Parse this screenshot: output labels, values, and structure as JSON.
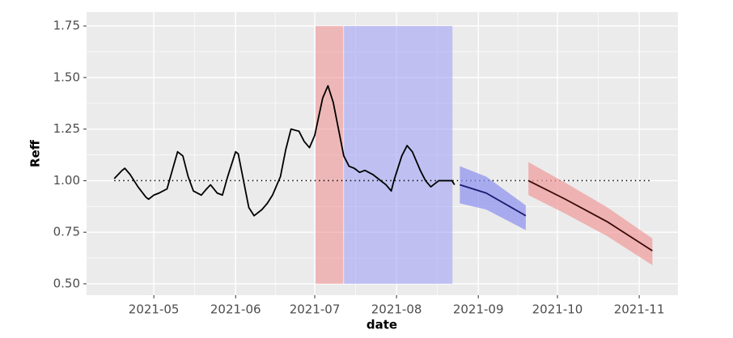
{
  "chart_data": {
    "type": "line",
    "x_label": "date",
    "y_label": "Reff",
    "xlim": [
      -25.5,
      198.7
    ],
    "ylim": [
      0.445,
      1.817
    ],
    "xticks": [
      {
        "value": 0,
        "label": "2021-05"
      },
      {
        "value": 31,
        "label": "2021-06"
      },
      {
        "value": 61,
        "label": "2021-07"
      },
      {
        "value": 92,
        "label": "2021-08"
      },
      {
        "value": 123,
        "label": "2021-09"
      },
      {
        "value": 153,
        "label": "2021-10"
      },
      {
        "value": 184,
        "label": "2021-11"
      }
    ],
    "yticks": [
      {
        "value": 0.5,
        "label": "0.50"
      },
      {
        "value": 0.75,
        "label": "0.75"
      },
      {
        "value": 1,
        "label": "1.00"
      },
      {
        "value": 1.25,
        "label": "1.25"
      },
      {
        "value": 1.5,
        "label": "1.50"
      },
      {
        "value": 1.75,
        "label": "1.75"
      }
    ],
    "grid": true,
    "reference_line": {
      "y": 1,
      "x": [
        -15,
        189
      ],
      "color": "#000000",
      "style": "dotted"
    },
    "shaded_regions": [
      {
        "x": [
          61.3,
          71.8
        ],
        "y": [
          0.5,
          1.75
        ],
        "color": "#f08c8c"
      },
      {
        "x": [
          72.1,
          113.2
        ],
        "y": [
          0.5,
          1.75
        ],
        "color": "#9a9cf5"
      }
    ],
    "series": [
      {
        "color": "#000000",
        "x": [
          -15,
          -12,
          -11,
          -9,
          -6,
          -3,
          -2,
          0,
          2,
          5,
          7,
          9,
          11,
          13,
          15,
          18,
          20,
          21.5,
          24,
          26,
          28,
          31,
          32,
          34,
          36,
          38,
          41,
          43,
          45,
          48,
          50,
          52,
          55,
          57,
          59,
          61,
          64,
          66,
          68,
          70,
          72,
          74,
          76,
          78,
          80,
          83,
          85,
          88,
          90,
          91,
          94,
          96,
          98,
          101,
          103,
          105,
          108,
          110,
          113,
          114
        ],
        "values": [
          1.01,
          1.05,
          1.06,
          1.03,
          0.97,
          0.92,
          0.91,
          0.93,
          0.94,
          0.96,
          1.05,
          1.14,
          1.12,
          1.02,
          0.95,
          0.93,
          0.96,
          0.98,
          0.94,
          0.93,
          1.02,
          1.14,
          1.13,
          1.0,
          0.87,
          0.83,
          0.86,
          0.89,
          0.93,
          1.02,
          1.15,
          1.25,
          1.24,
          1.19,
          1.16,
          1.22,
          1.4,
          1.46,
          1.38,
          1.25,
          1.12,
          1.07,
          1.06,
          1.04,
          1.05,
          1.03,
          1.01,
          0.98,
          0.95,
          1.0,
          1.12,
          1.17,
          1.14,
          1.05,
          1.0,
          0.97,
          1.0,
          1.0,
          1.0,
          0.98
        ]
      },
      {
        "color": "#1a1a6e",
        "ribbon_color": "#8c8ff0",
        "x": [
          116,
          126,
          141
        ],
        "values": [
          0.98,
          0.94,
          0.83
        ],
        "upper": [
          1.07,
          1.02,
          0.88
        ],
        "lower": [
          0.89,
          0.86,
          0.76
        ]
      },
      {
        "color": "#3a0a0a",
        "ribbon_color": "#f09a9a",
        "x": [
          142,
          156,
          172,
          189
        ],
        "values": [
          1.0,
          0.91,
          0.8,
          0.66
        ],
        "upper": [
          1.09,
          0.99,
          0.87,
          0.72
        ],
        "lower": [
          0.93,
          0.84,
          0.73,
          0.59
        ]
      }
    ]
  }
}
